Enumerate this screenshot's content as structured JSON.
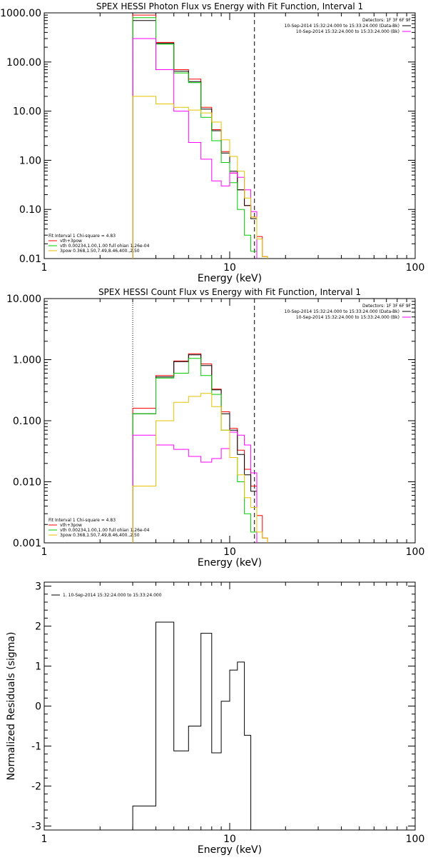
{
  "chart_data": [
    {
      "type": "line",
      "title": "SPEX HESSI Photon Flux vs Energy with Fit Function, Interval 1",
      "xlabel": "Energy  (keV)",
      "ylabel": "",
      "xscale": "log",
      "yscale": "log",
      "xlim": [
        1,
        100
      ],
      "ylim": [
        0.01,
        1000
      ],
      "x_ticks": [
        {
          "v": 1,
          "label": "1"
        },
        {
          "v": 10,
          "label": "10"
        },
        {
          "v": 100,
          "label": "100"
        }
      ],
      "y_ticks": [
        {
          "v": 1000,
          "label": "1000.00"
        },
        {
          "v": 100,
          "label": "100.00"
        },
        {
          "v": 10,
          "label": "10.00"
        },
        {
          "v": 1,
          "label": "1.00"
        },
        {
          "v": 0.1,
          "label": "0.10"
        },
        {
          "v": 0.01,
          "label": "0.01"
        }
      ],
      "bin_edges": [
        3.0,
        4.0,
        5.0,
        6.0,
        7.0,
        8.0,
        9.0,
        10.0,
        11.0,
        12.0,
        13.0,
        14.0,
        15.0,
        16.0
      ],
      "vlines": [
        {
          "x": 3.0,
          "style": "dotted"
        },
        {
          "x": 13.6,
          "style": "dashed"
        }
      ],
      "series": [
        {
          "name": "",
          "color": "#ff0000",
          "values": [
            900,
            250,
            70,
            45,
            12,
            4.2,
            1.5,
            0.55,
            0.25,
            0.12,
            0.07,
            0.028,
            0.011
          ]
        },
        {
          "name": "",
          "color": "#000000",
          "values": [
            700,
            240,
            65,
            40,
            11,
            4.0,
            1.4,
            0.6,
            0.25,
            0.12,
            0.065
          ]
        },
        {
          "name": "",
          "color": "#00cc00",
          "values": [
            800,
            230,
            60,
            38,
            7.5,
            2.5,
            0.9,
            0.35,
            0.1,
            0.03,
            0.014
          ]
        },
        {
          "name": "",
          "color": "#ff00ff",
          "values": [
            300,
            70,
            10,
            2.3,
            1.05,
            0.38,
            0.3,
            0.55,
            0.45,
            0.25,
            0.09
          ]
        },
        {
          "name": "",
          "color": "#e6c200",
          "values": [
            20,
            14,
            12,
            10.5,
            9.2,
            6.0,
            2.6,
            1.2,
            0.6,
            0.17,
            0.07,
            0.025,
            0.011
          ]
        }
      ],
      "legend_top": {
        "placement": "top-right",
        "heading": "Detectors: 1F 3F 6F 9F",
        "entries": [
          {
            "label": "10-Sep-2014 15:32:24.000 to 15:33:24.000 (Data-Bk)",
            "color": "#000000"
          },
          {
            "label": "10-Sep-2014 15:32:24.000 to 15:33:24.000 (Bk)",
            "color": "#ff00ff"
          }
        ]
      },
      "legend_bottom": {
        "placement": "bottom-left",
        "heading": "Fit Interval 1   Chi-square = 4.83",
        "entries": [
          {
            "label": "vth+3pow",
            "color": "#ff0000"
          },
          {
            "label": "vth 0.00234,1.00,1.00  full ohian 1.26e-04",
            "color": "#00cc00"
          },
          {
            "label": "3pow 0.368,1.50,7.49,8.46,400.,2.50",
            "color": "#e6c200"
          }
        ]
      }
    },
    {
      "type": "line",
      "title": "SPEX HESSI Count Flux vs Energy with Fit Function, Interval 1",
      "xlabel": "Energy  (keV)",
      "ylabel": "",
      "xscale": "log",
      "yscale": "log",
      "xlim": [
        1,
        100
      ],
      "ylim": [
        0.001,
        10
      ],
      "x_ticks": [
        {
          "v": 1,
          "label": "1"
        },
        {
          "v": 10,
          "label": "10"
        },
        {
          "v": 100,
          "label": "100"
        }
      ],
      "y_ticks": [
        {
          "v": 10,
          "label": "10.000"
        },
        {
          "v": 1,
          "label": "1.000"
        },
        {
          "v": 0.1,
          "label": "0.100"
        },
        {
          "v": 0.01,
          "label": "0.010"
        },
        {
          "v": 0.001,
          "label": "0.001"
        }
      ],
      "bin_edges": [
        3.0,
        4.0,
        5.0,
        6.0,
        7.0,
        8.0,
        9.0,
        10.0,
        11.0,
        12.0,
        13.0,
        14.0,
        15.0,
        16.0
      ],
      "vlines": [
        {
          "x": 3.0,
          "style": "dotted"
        },
        {
          "x": 13.6,
          "style": "dashed"
        }
      ],
      "series": [
        {
          "name": "",
          "color": "#ff0000",
          "values": [
            0.16,
            0.55,
            0.95,
            1.25,
            0.85,
            0.33,
            0.14,
            0.075,
            0.033,
            0.016,
            0.0085,
            0.0028,
            0.0012
          ]
        },
        {
          "name": "",
          "color": "#000000",
          "values": [
            0.13,
            0.52,
            0.93,
            1.2,
            0.8,
            0.32,
            0.13,
            0.07,
            0.028,
            0.013,
            0.007
          ]
        },
        {
          "name": "",
          "color": "#00cc00",
          "values": [
            0.13,
            0.5,
            0.6,
            1.05,
            0.55,
            0.27,
            0.07,
            0.025,
            0.01,
            0.003,
            0.0015
          ]
        },
        {
          "name": "",
          "color": "#ff00ff",
          "values": [
            0.058,
            0.04,
            0.034,
            0.026,
            0.021,
            0.024,
            0.035,
            0.065,
            0.058,
            0.04,
            0.014
          ]
        },
        {
          "name": "",
          "color": "#e6c200",
          "values": [
            0.0085,
            0.1,
            0.2,
            0.25,
            0.28,
            0.17,
            0.07,
            0.025,
            0.013,
            0.0055,
            0.0038,
            0.0015,
            0.0012
          ]
        }
      ],
      "legend_top": {
        "placement": "top-right",
        "heading": "Detectors: 1F 3F 6F 9F",
        "entries": [
          {
            "label": "10-Sep-2014 15:32:24.000 to 15:33:24.000 (Data-Bk)",
            "color": "#000000"
          },
          {
            "label": "10-Sep-2014 15:32:24.000 to 15:33:24.000 (Bk)",
            "color": "#ff00ff"
          }
        ]
      },
      "legend_bottom": {
        "placement": "bottom-left",
        "heading": "Fit Interval 1   Chi-square = 4.83",
        "entries": [
          {
            "label": "vth+3pow",
            "color": "#ff0000"
          },
          {
            "label": "vth 0.00234,1.00,1.00  full ohian 1.26e-04",
            "color": "#00cc00"
          },
          {
            "label": "3pow 0.368,1.50,7.49,8.46,400.,2.50",
            "color": "#e6c200"
          }
        ]
      }
    },
    {
      "type": "line",
      "title": "",
      "xlabel": "Energy  (keV)",
      "ylabel": "Normalized Residuals (sigma)",
      "xscale": "log",
      "yscale": "linear",
      "xlim": [
        1,
        100
      ],
      "ylim": [
        -3.1,
        3.1
      ],
      "x_ticks": [
        {
          "v": 1,
          "label": "1"
        },
        {
          "v": 10,
          "label": "10"
        },
        {
          "v": 100,
          "label": "100"
        }
      ],
      "y_ticks": [
        {
          "v": 3,
          "label": "3"
        },
        {
          "v": 2,
          "label": "2"
        },
        {
          "v": 1,
          "label": "1"
        },
        {
          "v": 0,
          "label": "0"
        },
        {
          "v": -1,
          "label": "-1"
        },
        {
          "v": -2,
          "label": "-2"
        },
        {
          "v": -3,
          "label": "-3"
        }
      ],
      "bin_edges": [
        3.0,
        4.0,
        5.0,
        6.0,
        7.0,
        8.0,
        9.0,
        10.0,
        11.0,
        12.0,
        13.0,
        14.0
      ],
      "series": [
        {
          "name": "",
          "color": "#000000",
          "values": [
            -2.5,
            2.1,
            -1.12,
            -0.5,
            1.82,
            -1.17,
            0.12,
            0.9,
            1.1,
            -0.73
          ]
        }
      ],
      "legend_top": {
        "placement": "top-left",
        "heading": "",
        "entries": [
          {
            "label": "1. 10-Sep-2014 15:32:24.000 to 15:33:24.000",
            "color": "#000000"
          }
        ]
      }
    }
  ]
}
